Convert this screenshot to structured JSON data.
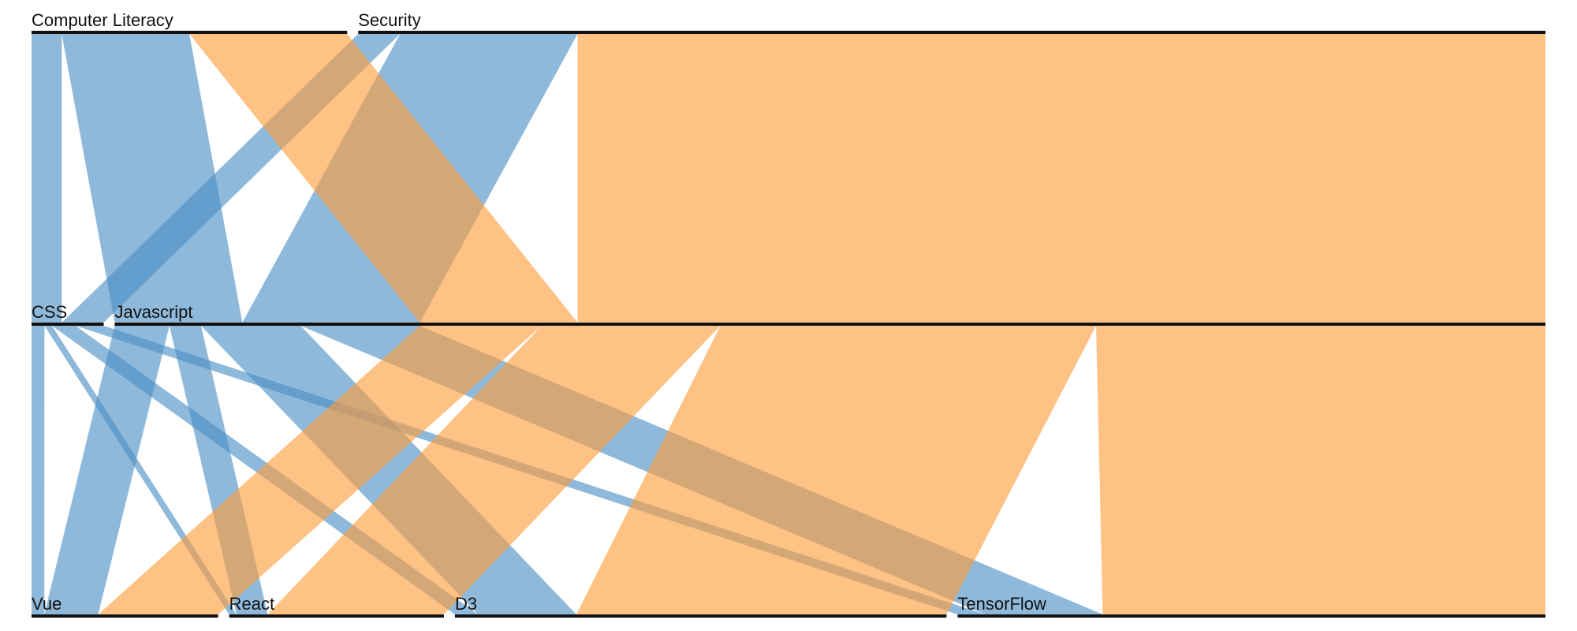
{
  "chart_data": {
    "type": "parallel-sets",
    "colors": {
      "blue": "#4a8ec4",
      "orange": "#ff9d3a",
      "axis": "#111111"
    },
    "dimensions": [
      {
        "categories": [
          {
            "label": "Computer Literacy",
            "blue": 0.105,
            "orange": 0.105
          },
          {
            "label": "Security",
            "blue": 0.146,
            "orange": 0.644
          }
        ]
      },
      {
        "categories": [
          {
            "label": "CSS",
            "blue": 0.048,
            "orange": 0.0
          },
          {
            "label": "Javascript",
            "blue": 0.203,
            "orange": 0.749
          }
        ]
      },
      {
        "categories": [
          {
            "label": "Vue",
            "blue": 0.045,
            "orange": 0.081
          },
          {
            "label": "React",
            "blue": 0.026,
            "orange": 0.119
          },
          {
            "label": "D3",
            "blue": 0.082,
            "orange": 0.25
          },
          {
            "label": "TensorFlow",
            "blue": 0.098,
            "orange": 0.299
          }
        ]
      }
    ]
  }
}
